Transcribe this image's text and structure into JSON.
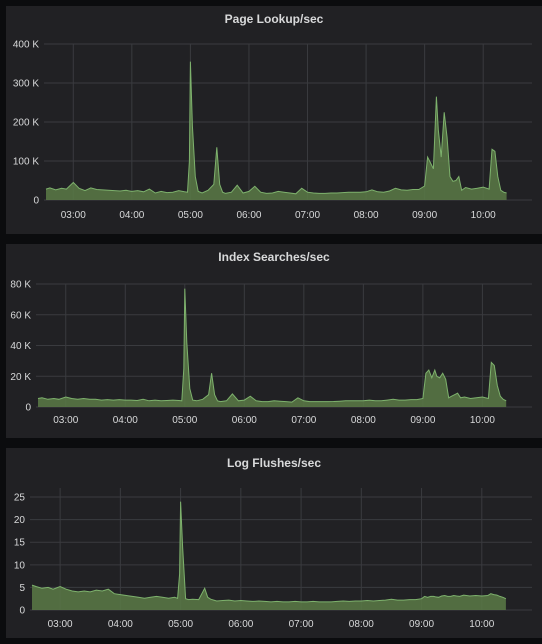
{
  "chart_data": [
    {
      "type": "area",
      "title": "Page Lookup/sec",
      "x_ticks": [
        "03:00",
        "04:00",
        "05:00",
        "06:00",
        "07:00",
        "08:00",
        "09:00",
        "10:00"
      ],
      "y_ticks": [
        "0",
        "100 K",
        "200 K",
        "300 K",
        "400 K"
      ],
      "ylim": [
        0,
        400000
      ],
      "xlim": [
        "02:30",
        "10:50"
      ],
      "x": [
        "02:32",
        "02:36",
        "02:42",
        "02:48",
        "02:53",
        "03:00",
        "03:06",
        "03:12",
        "03:18",
        "03:24",
        "03:30",
        "03:36",
        "03:42",
        "03:48",
        "03:54",
        "04:00",
        "04:06",
        "04:12",
        "04:18",
        "04:24",
        "04:30",
        "04:36",
        "04:42",
        "04:48",
        "04:54",
        "04:57",
        "04:59",
        "05:00",
        "05:02",
        "05:05",
        "05:08",
        "05:12",
        "05:18",
        "05:24",
        "05:27",
        "05:30",
        "05:33",
        "05:36",
        "05:42",
        "05:48",
        "05:54",
        "06:00",
        "06:06",
        "06:12",
        "06:18",
        "06:24",
        "06:30",
        "06:36",
        "06:42",
        "06:48",
        "06:54",
        "07:00",
        "07:06",
        "07:12",
        "07:18",
        "07:24",
        "07:30",
        "07:36",
        "07:42",
        "07:48",
        "07:54",
        "08:00",
        "08:06",
        "08:12",
        "08:18",
        "08:24",
        "08:30",
        "08:36",
        "08:42",
        "08:48",
        "08:54",
        "09:00",
        "09:03",
        "09:06",
        "09:09",
        "09:12",
        "09:14",
        "09:17",
        "09:20",
        "09:23",
        "09:26",
        "09:29",
        "09:32",
        "09:35",
        "09:38",
        "09:42",
        "09:48",
        "09:54",
        "10:00",
        "10:06",
        "10:09",
        "10:12",
        "10:15",
        "10:18",
        "10:21",
        "10:24"
      ],
      "series": [
        {
          "values": [
            28000,
            31000,
            26000,
            30000,
            28000,
            45000,
            30000,
            24000,
            31000,
            27000,
            26000,
            25000,
            24000,
            23000,
            25000,
            22000,
            24000,
            21000,
            28000,
            18000,
            22000,
            19000,
            20000,
            24000,
            21000,
            20000,
            100000,
            355000,
            190000,
            60000,
            22000,
            18000,
            25000,
            40000,
            135000,
            40000,
            20000,
            17000,
            20000,
            38000,
            18000,
            22000,
            35000,
            20000,
            17000,
            18000,
            22000,
            20000,
            18000,
            16000,
            30000,
            20000,
            18000,
            17000,
            17000,
            18000,
            18000,
            19000,
            20000,
            20000,
            20000,
            21000,
            26000,
            21000,
            20000,
            23000,
            30000,
            26000,
            25000,
            27000,
            27000,
            36000,
            110000,
            95000,
            80000,
            265000,
            180000,
            110000,
            225000,
            160000,
            60000,
            48000,
            50000,
            60000,
            25000,
            32000,
            28000,
            30000,
            33000,
            28000,
            130000,
            125000,
            60000,
            25000,
            20000,
            18000
          ]
        }
      ]
    },
    {
      "type": "area",
      "title": "Index Searches/sec",
      "x_ticks": [
        "03:00",
        "04:00",
        "05:00",
        "06:00",
        "07:00",
        "08:00",
        "09:00",
        "10:00"
      ],
      "y_ticks": [
        "0",
        "20 K",
        "40 K",
        "60 K",
        "80 K"
      ],
      "ylim": [
        0,
        80000
      ],
      "xlim": [
        "02:30",
        "10:50"
      ],
      "x": [
        "02:32",
        "02:36",
        "02:42",
        "02:48",
        "02:53",
        "03:00",
        "03:06",
        "03:12",
        "03:18",
        "03:24",
        "03:30",
        "03:36",
        "03:42",
        "03:48",
        "03:54",
        "04:00",
        "04:06",
        "04:12",
        "04:18",
        "04:24",
        "04:30",
        "04:36",
        "04:42",
        "04:48",
        "04:54",
        "04:57",
        "04:59",
        "05:00",
        "05:02",
        "05:05",
        "05:08",
        "05:12",
        "05:18",
        "05:24",
        "05:27",
        "05:30",
        "05:33",
        "05:36",
        "05:42",
        "05:48",
        "05:54",
        "06:00",
        "06:06",
        "06:12",
        "06:18",
        "06:24",
        "06:30",
        "06:36",
        "06:42",
        "06:48",
        "06:54",
        "07:00",
        "07:06",
        "07:12",
        "07:18",
        "07:24",
        "07:30",
        "07:36",
        "07:42",
        "07:48",
        "07:54",
        "08:00",
        "08:06",
        "08:12",
        "08:18",
        "08:24",
        "08:30",
        "08:36",
        "08:42",
        "08:48",
        "08:54",
        "09:00",
        "09:03",
        "09:06",
        "09:09",
        "09:12",
        "09:14",
        "09:17",
        "09:20",
        "09:23",
        "09:26",
        "09:29",
        "09:32",
        "09:35",
        "09:38",
        "09:42",
        "09:48",
        "09:54",
        "10:00",
        "10:06",
        "10:09",
        "10:12",
        "10:15",
        "10:18",
        "10:21",
        "10:24"
      ],
      "series": [
        {
          "values": [
            5500,
            6000,
            5000,
            5500,
            5000,
            6500,
            5500,
            5000,
            5500,
            5000,
            5000,
            4500,
            4800,
            4500,
            4800,
            4500,
            4500,
            4200,
            5000,
            4000,
            4500,
            4000,
            4200,
            4500,
            4200,
            4000,
            25000,
            77000,
            42000,
            12000,
            4500,
            4000,
            5000,
            8000,
            22000,
            8000,
            4000,
            3500,
            4000,
            8500,
            4000,
            4500,
            7000,
            4000,
            3500,
            3500,
            4000,
            3800,
            3500,
            3200,
            6000,
            4000,
            3500,
            3500,
            3500,
            3500,
            3600,
            3800,
            4000,
            4000,
            4000,
            4000,
            4500,
            4000,
            4000,
            4500,
            5000,
            4500,
            4500,
            4800,
            4800,
            5500,
            22000,
            24000,
            19000,
            24000,
            20000,
            19000,
            22000,
            18000,
            6000,
            7000,
            8000,
            9000,
            6000,
            6500,
            5500,
            6000,
            6500,
            5500,
            29000,
            27000,
            14000,
            7000,
            5000,
            4000
          ]
        }
      ]
    },
    {
      "type": "area",
      "title": "Log Flushes/sec",
      "x_ticks": [
        "03:00",
        "04:00",
        "05:00",
        "06:00",
        "07:00",
        "08:00",
        "09:00",
        "10:00"
      ],
      "y_ticks": [
        "0",
        "5",
        "10",
        "15",
        "20",
        "25"
      ],
      "ylim": [
        0,
        27
      ],
      "xlim": [
        "02:30",
        "10:50"
      ],
      "x": [
        "02:32",
        "02:36",
        "02:42",
        "02:48",
        "02:53",
        "03:00",
        "03:06",
        "03:12",
        "03:18",
        "03:24",
        "03:30",
        "03:36",
        "03:42",
        "03:48",
        "03:54",
        "04:00",
        "04:06",
        "04:12",
        "04:18",
        "04:24",
        "04:30",
        "04:36",
        "04:42",
        "04:48",
        "04:54",
        "04:57",
        "04:59",
        "05:00",
        "05:02",
        "05:05",
        "05:08",
        "05:12",
        "05:18",
        "05:24",
        "05:27",
        "05:30",
        "05:33",
        "05:36",
        "05:42",
        "05:48",
        "05:54",
        "06:00",
        "06:06",
        "06:12",
        "06:18",
        "06:24",
        "06:30",
        "06:36",
        "06:42",
        "06:48",
        "06:54",
        "07:00",
        "07:06",
        "07:12",
        "07:18",
        "07:24",
        "07:30",
        "07:36",
        "07:42",
        "07:48",
        "07:54",
        "08:00",
        "08:06",
        "08:12",
        "08:18",
        "08:24",
        "08:30",
        "08:36",
        "08:42",
        "08:48",
        "08:54",
        "09:00",
        "09:03",
        "09:06",
        "09:09",
        "09:12",
        "09:14",
        "09:17",
        "09:20",
        "09:23",
        "09:26",
        "09:29",
        "09:32",
        "09:35",
        "09:38",
        "09:42",
        "09:48",
        "09:54",
        "10:00",
        "10:06",
        "10:09",
        "10:12",
        "10:15",
        "10:18",
        "10:21",
        "10:24"
      ],
      "series": [
        {
          "values": [
            5.5,
            5.2,
            4.8,
            5.0,
            4.6,
            5.2,
            4.6,
            4.2,
            4.0,
            4.2,
            4.0,
            4.4,
            4.2,
            4.6,
            3.6,
            3.4,
            3.2,
            3.0,
            2.8,
            2.6,
            2.8,
            3.0,
            2.8,
            2.6,
            2.8,
            2.6,
            8.0,
            24.0,
            14.0,
            2.5,
            2.3,
            2.4,
            2.3,
            4.8,
            2.8,
            2.4,
            2.2,
            2.0,
            2.1,
            2.2,
            2.0,
            2.1,
            2.0,
            1.9,
            2.0,
            1.9,
            1.8,
            1.9,
            1.8,
            1.8,
            1.9,
            1.8,
            1.8,
            1.9,
            1.8,
            1.8,
            1.8,
            1.9,
            2.0,
            1.9,
            2.0,
            2.0,
            2.1,
            2.0,
            2.1,
            2.2,
            2.4,
            2.2,
            2.2,
            2.3,
            2.3,
            2.5,
            3.0,
            2.8,
            3.0,
            3.0,
            2.9,
            2.8,
            3.1,
            3.2,
            3.0,
            3.0,
            3.2,
            3.1,
            3.0,
            3.3,
            3.1,
            3.2,
            3.1,
            3.2,
            3.6,
            3.4,
            3.3,
            3.0,
            2.8,
            2.5
          ]
        }
      ]
    }
  ]
}
